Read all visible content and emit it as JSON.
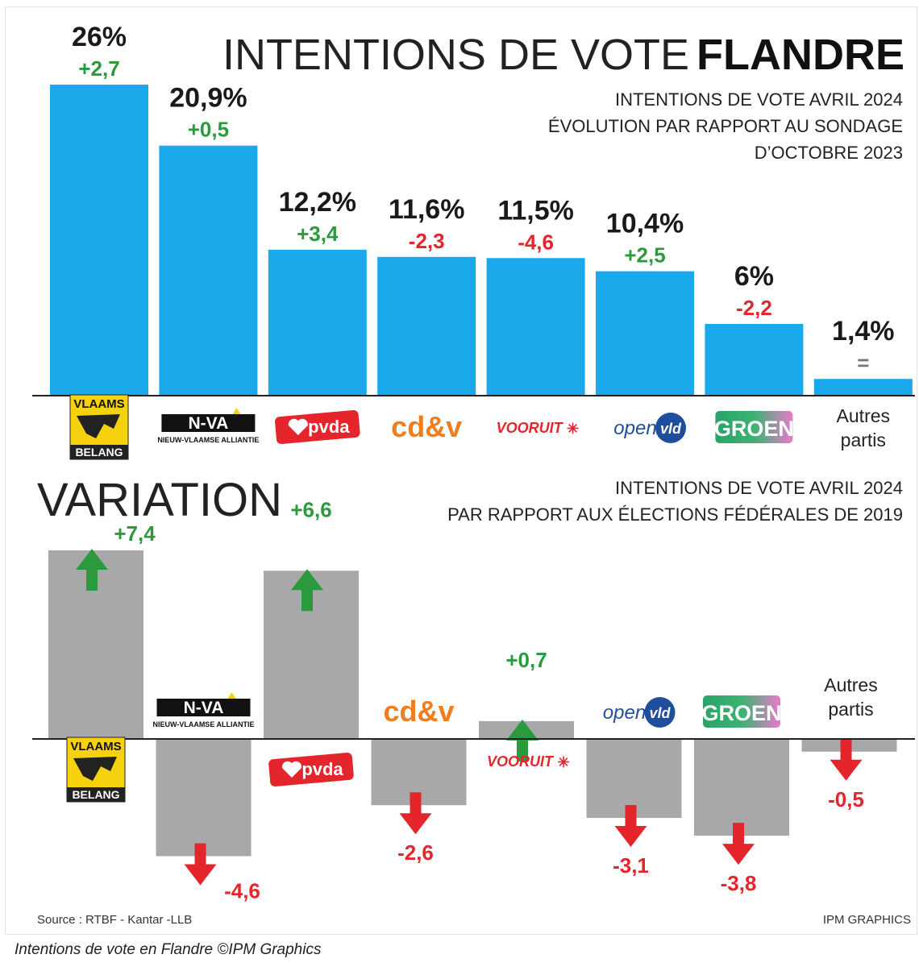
{
  "colors": {
    "bar_blue": "#1aa9ea",
    "bar_grey": "#a8a8a8",
    "positive": "#2a9a3c",
    "negative": "#e4262c",
    "neutral": "#777777",
    "text": "#1a1a1a"
  },
  "header": {
    "title_light": "INTENTIONS DE VOTE",
    "title_bold": "FLANDRE",
    "subtitle_lines": [
      "INTENTIONS DE VOTE AVRIL 2024",
      "ÉVOLUTION PAR RAPPORT AU SONDAGE",
      "D’OCTOBRE 2023"
    ]
  },
  "variation_header": {
    "title": "VARIATION",
    "subtitle_lines": [
      "INTENTIONS DE VOTE AVRIL 2024",
      "PAR RAPPORT AUX ÉLECTIONS FÉDÉRALES DE 2019"
    ]
  },
  "parties": [
    {
      "key": "vb",
      "logo_icon": "vlaams-belang-logo",
      "logo_lines": [
        "VLAAMS",
        "BELANG"
      ]
    },
    {
      "key": "nva",
      "logo_icon": "nva-logo",
      "logo_lines": [
        "N-VA",
        "NIEUW-VLAAMSE ALLIANTIE"
      ]
    },
    {
      "key": "pvda",
      "logo_icon": "pvda-logo",
      "logo_lines": [
        "pvda"
      ]
    },
    {
      "key": "cdv",
      "logo_icon": "cdv-logo",
      "logo_lines": [
        "cd&v"
      ]
    },
    {
      "key": "vooruit",
      "logo_icon": "vooruit-logo",
      "logo_lines": [
        "VOORUIT"
      ]
    },
    {
      "key": "openvld",
      "logo_icon": "open-vld-logo",
      "logo_lines": [
        "open",
        "vld"
      ]
    },
    {
      "key": "groen",
      "logo_icon": "groen-logo",
      "logo_lines": [
        "GROEN"
      ]
    },
    {
      "key": "autres",
      "logo_icon": "",
      "logo_lines": [
        "Autres",
        "partis"
      ]
    }
  ],
  "chart_data": [
    {
      "type": "bar",
      "title": "INTENTIONS DE VOTE FLANDRE",
      "categories": [
        "Vlaams Belang",
        "N-VA",
        "PVDA",
        "CD&V",
        "Vooruit",
        "Open VLD",
        "Groen",
        "Autres partis"
      ],
      "values": [
        26,
        20.9,
        12.2,
        11.6,
        11.5,
        10.4,
        6,
        1.4
      ],
      "value_labels": [
        "26%",
        "20,9%",
        "12,2%",
        "11,6%",
        "11,5%",
        "10,4%",
        "6%",
        "1,4%"
      ],
      "change_labels": [
        "+2,7",
        "+0,5",
        "+3,4",
        "-2,3",
        "-4,6",
        "+2,5",
        "-2,2",
        "="
      ],
      "change_values": [
        2.7,
        0.5,
        3.4,
        -2.3,
        -4.6,
        2.5,
        -2.2,
        0
      ],
      "ylim": [
        0,
        26
      ]
    },
    {
      "type": "bar",
      "title": "VARIATION",
      "categories": [
        "Vlaams Belang",
        "N-VA",
        "PVDA",
        "CD&V",
        "Vooruit",
        "Open VLD",
        "Groen",
        "Autres partis"
      ],
      "values": [
        7.4,
        -4.6,
        6.6,
        -2.6,
        0.7,
        -3.1,
        -3.8,
        -0.5
      ],
      "value_labels": [
        "+7,4",
        "-4,6",
        "+6,6",
        "-2,6",
        "+0,7",
        "-3,1",
        "-3,8",
        "-0,5"
      ],
      "ylim": [
        -4.6,
        7.4
      ]
    }
  ],
  "footer": {
    "source": "Source : RTBF - Kantar -LLB",
    "credit": "IPM GRAPHICS"
  },
  "caption": "Intentions de vote en Flandre ©IPM Graphics"
}
